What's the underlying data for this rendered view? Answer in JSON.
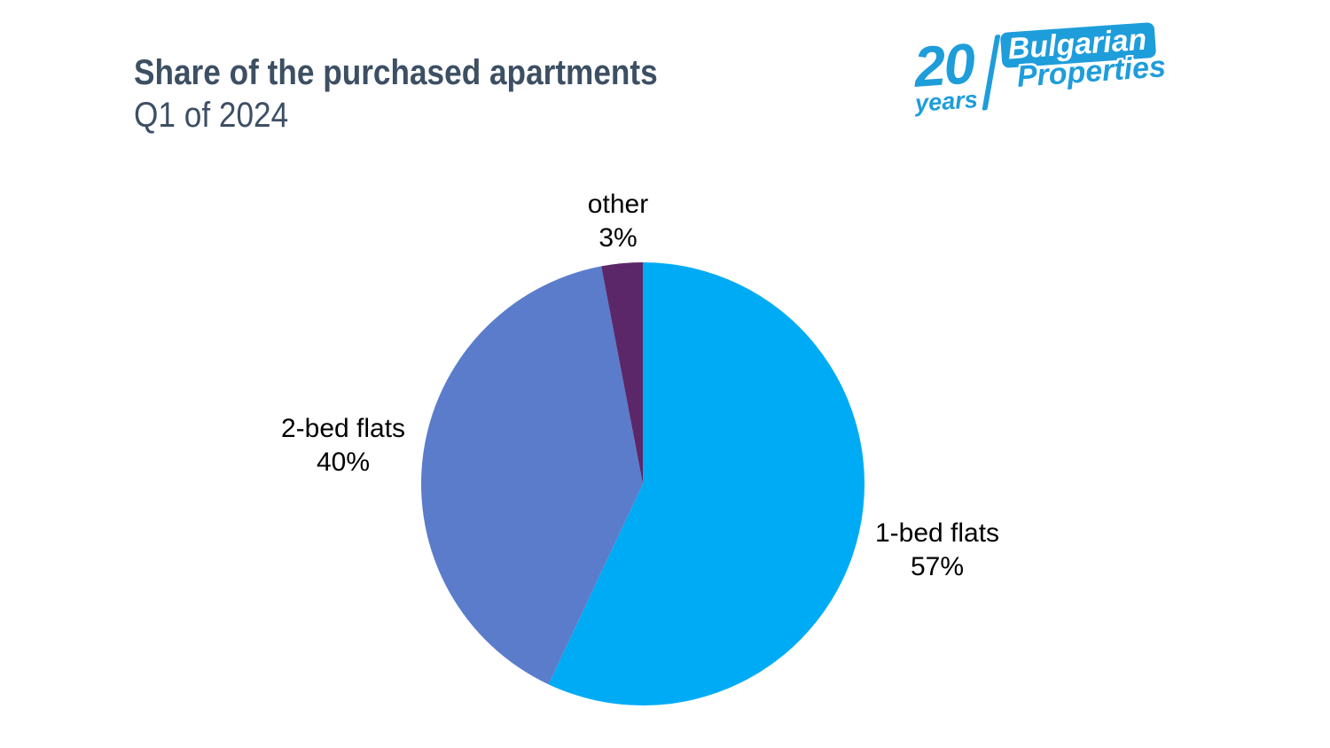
{
  "header": {
    "title": "Share of the purchased apartments",
    "subtitle": "Q1 of 2024",
    "title_color": "#3D4F63"
  },
  "logo": {
    "years_number": "20",
    "years_word": "years",
    "brand_line1": "Bulgarian",
    "brand_line2": "Properties",
    "color": "#1E9DDB"
  },
  "chart_data": {
    "type": "pie",
    "title": "Share of the purchased apartments",
    "subtitle": "Q1 of 2024",
    "direction": "clockwise",
    "start_angle_deg": 0,
    "legend": "none",
    "label_style": "outside, two lines: category name and percent",
    "categories": [
      "1-bed flats",
      "2-bed flats",
      "other"
    ],
    "values": [
      57,
      40,
      3
    ],
    "slices": [
      {
        "label": "1-bed flats",
        "value": 57,
        "pct_text": "57%",
        "color": "#00ABF5"
      },
      {
        "label": "2-bed flats",
        "value": 40,
        "pct_text": "40%",
        "color": "#5B7CCB"
      },
      {
        "label": "other",
        "value": 3,
        "pct_text": "3%",
        "color": "#5C2768"
      }
    ],
    "label_text_color": "#000000",
    "background_color": "#FFFFFF"
  }
}
